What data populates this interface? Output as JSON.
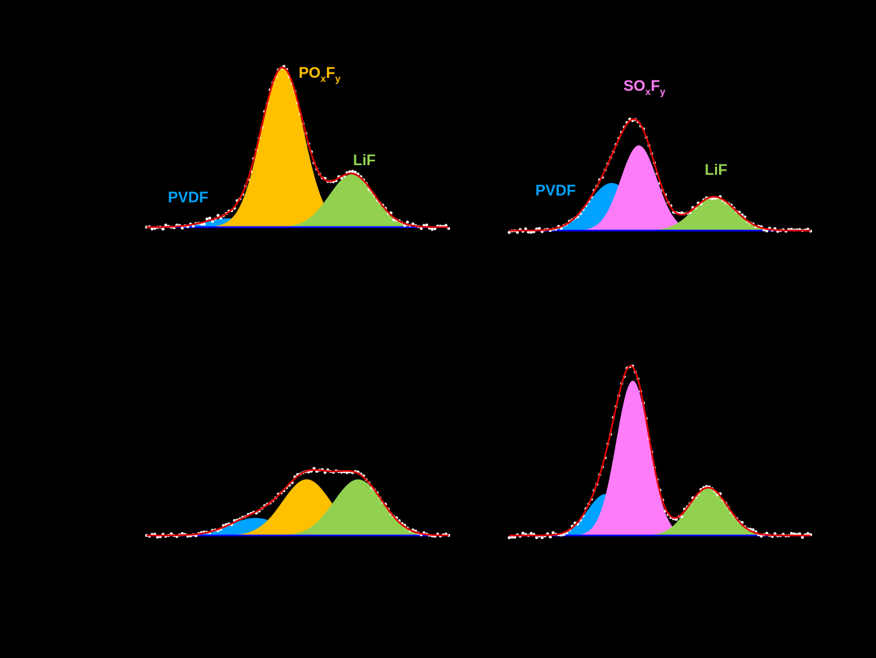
{
  "colors": {
    "background": "#000000",
    "PVDF": "#00A2FF",
    "POxFy": "#FFC000",
    "SOxFy": "#FF7CF8",
    "LiF": "#92D050",
    "envelope": "#E00000",
    "baseline": "#0000FF",
    "raw_points": "#FFFFFF"
  },
  "chart_data": [
    {
      "type": "area",
      "panel": "top-left",
      "xlim": [
        0,
        1
      ],
      "ylim": [
        0,
        1
      ],
      "baseline": [
        0.0,
        0.0
      ],
      "components": [
        {
          "name": "PVDF",
          "center": 0.27,
          "height": 0.055,
          "width": 0.075
        },
        {
          "name": "POxFy",
          "center": 0.45,
          "height": 0.99,
          "width": 0.07
        },
        {
          "name": "LiF",
          "center": 0.68,
          "height": 0.33,
          "width": 0.075
        }
      ],
      "labels": [
        {
          "name": "PVDF",
          "main": "PVDF",
          "sub1": "",
          "mid": "",
          "sub2": ""
        },
        {
          "name": "POxFy",
          "main": "PO",
          "sub1": "x",
          "mid": "F",
          "sub2": "y"
        },
        {
          "name": "LiF",
          "main": "LiF",
          "sub1": "",
          "mid": "",
          "sub2": ""
        }
      ]
    },
    {
      "type": "area",
      "panel": "top-right",
      "xlim": [
        0,
        1
      ],
      "ylim": [
        0,
        1
      ],
      "baseline": [
        0.0,
        0.0
      ],
      "components": [
        {
          "name": "PVDF",
          "center": 0.34,
          "height": 0.38,
          "width": 0.075
        },
        {
          "name": "SOxFy",
          "center": 0.43,
          "height": 0.68,
          "width": 0.06
        },
        {
          "name": "LiF",
          "center": 0.68,
          "height": 0.27,
          "width": 0.07
        }
      ],
      "labels": [
        {
          "name": "PVDF",
          "main": "PVDF",
          "sub1": "",
          "mid": "",
          "sub2": ""
        },
        {
          "name": "SOxFy",
          "main": "SO",
          "sub1": "x",
          "mid": "F",
          "sub2": "y"
        },
        {
          "name": "LiF",
          "main": "LiF",
          "sub1": "",
          "mid": "",
          "sub2": ""
        }
      ]
    },
    {
      "type": "area",
      "panel": "bottom-left",
      "xlim": [
        0,
        1
      ],
      "ylim": [
        0,
        1
      ],
      "baseline": [
        0.0,
        0.0
      ],
      "components": [
        {
          "name": "PVDF",
          "center": 0.36,
          "height": 0.15,
          "width": 0.085
        },
        {
          "name": "POxFy",
          "center": 0.53,
          "height": 0.48,
          "width": 0.08
        },
        {
          "name": "LiF",
          "center": 0.7,
          "height": 0.48,
          "width": 0.08
        }
      ],
      "labels": []
    },
    {
      "type": "area",
      "panel": "bottom-right",
      "xlim": [
        0,
        1
      ],
      "ylim": [
        0,
        1
      ],
      "baseline": [
        0.0,
        0.0
      ],
      "components": [
        {
          "name": "PVDF",
          "center": 0.32,
          "height": 0.26,
          "width": 0.06
        },
        {
          "name": "SOxFy",
          "center": 0.41,
          "height": 0.97,
          "width": 0.055
        },
        {
          "name": "LiF",
          "center": 0.66,
          "height": 0.3,
          "width": 0.065
        }
      ],
      "labels": []
    }
  ]
}
